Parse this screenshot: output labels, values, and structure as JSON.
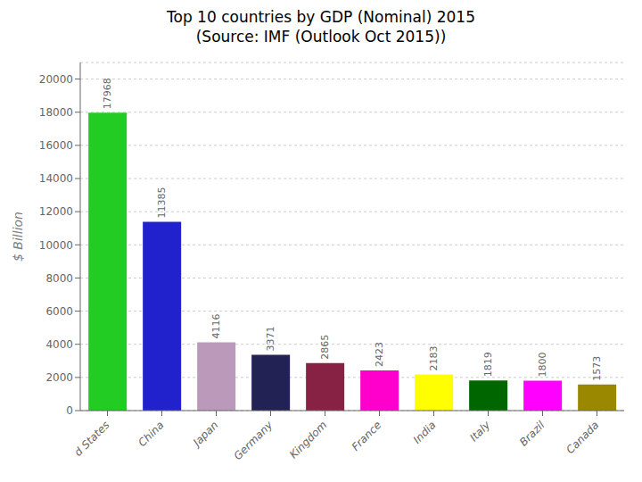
{
  "chart_data": {
    "type": "bar",
    "title": "Top 10 countries by GDP (Nominal) 2015\n(Source: IMF (Outlook Oct 2015))",
    "ylabel": "$ Billion",
    "categories": [
      "d States",
      "China",
      "Japan",
      "Germany",
      "Kingdom",
      "France",
      "India",
      "Italy",
      "Brazil",
      "Canada"
    ],
    "values": [
      17968,
      11385,
      4116,
      3371,
      2865,
      2423,
      2183,
      1819,
      1800,
      1573
    ],
    "colors": [
      "#22cc22",
      "#2222cc",
      "#bb99bb",
      "#222255",
      "#882244",
      "#ff00cc",
      "#ffff00",
      "#006600",
      "#ff00ff",
      "#998800"
    ],
    "ylim": [
      0,
      21000
    ],
    "yticks": [
      0,
      2000,
      4000,
      6000,
      8000,
      10000,
      12000,
      14000,
      16000,
      18000,
      20000
    ],
    "grid": true,
    "data_labels": true
  }
}
